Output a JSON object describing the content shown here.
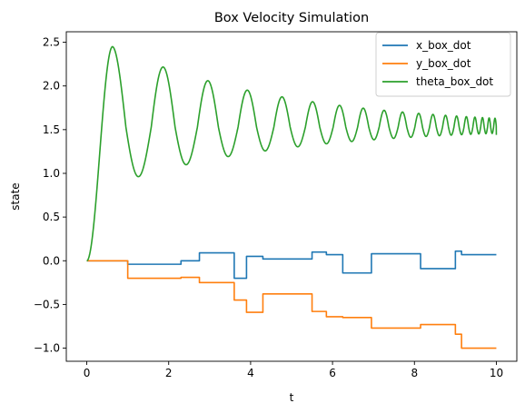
{
  "chart_data": {
    "type": "line",
    "title": "Box Velocity Simulation",
    "xlabel": "t",
    "ylabel": "state",
    "xlim": [
      -0.5,
      10.5
    ],
    "ylim": [
      -1.15,
      2.62
    ],
    "xticks": [
      0,
      2,
      4,
      6,
      8,
      10
    ],
    "xtick_labels": [
      "0",
      "2",
      "4",
      "6",
      "8",
      "10"
    ],
    "yticks": [
      -1.0,
      -0.5,
      0.0,
      0.5,
      1.0,
      1.5,
      2.0,
      2.5
    ],
    "ytick_labels": [
      "−1.0",
      "−0.5",
      "0.0",
      "0.5",
      "1.0",
      "1.5",
      "2.0",
      "2.5"
    ],
    "grid": false,
    "legend_position": "top-right",
    "series": [
      {
        "name": "x_box_dot",
        "color": "#1f77b4",
        "style": "step",
        "x": [
          0,
          1.0,
          2.3,
          2.75,
          3.6,
          3.9,
          4.3,
          5.5,
          5.85,
          6.25,
          6.95,
          8.15,
          9.0,
          9.15,
          10
        ],
        "y": [
          0,
          -0.04,
          0.0,
          0.09,
          -0.2,
          0.05,
          0.02,
          0.1,
          0.07,
          -0.14,
          0.08,
          -0.09,
          0.11,
          0.07,
          0.07
        ]
      },
      {
        "name": "y_box_dot",
        "color": "#ff7f0e",
        "style": "step",
        "x": [
          0,
          1.0,
          2.3,
          2.75,
          3.6,
          3.9,
          4.3,
          5.5,
          5.85,
          6.25,
          6.95,
          8.15,
          9.0,
          9.15,
          10
        ],
        "y": [
          0,
          -0.2,
          -0.19,
          -0.25,
          -0.45,
          -0.59,
          -0.38,
          -0.58,
          -0.64,
          -0.65,
          -0.77,
          -0.73,
          -0.84,
          -1.0,
          -1.0
        ]
      },
      {
        "name": "theta_box_dot",
        "color": "#2ca02c",
        "style": "damped-oscillation",
        "start_value": 0.0,
        "peak_time": 0.63,
        "first_peak": 2.45,
        "first_trough": 0.87,
        "settling_value": 1.53,
        "final_amplitude": 0.1,
        "end_value": 1.44,
        "period_start": 1.32,
        "period_end": 0.13,
        "t_end": 10
      }
    ]
  }
}
